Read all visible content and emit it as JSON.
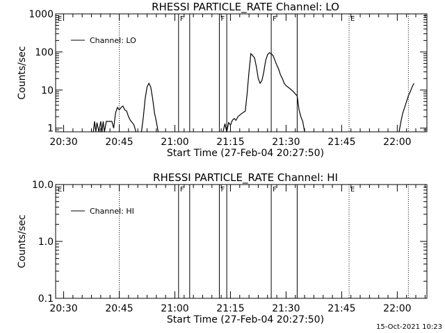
{
  "footer_timestamp": "15-Oct-2021 10:23",
  "chart_data": [
    {
      "type": "line",
      "title": "RHESSI PARTICLE_RATE Channel: LO",
      "xlabel": "Start Time (27-Feb-04 20:27:50)",
      "ylabel": "Counts/sec",
      "yscale": "log",
      "ylim": [
        0.8,
        1000
      ],
      "xlim_minutes": [
        "20:27:50",
        "22:08:00"
      ],
      "y_ticks": [
        "1",
        "10",
        "100",
        "1000"
      ],
      "x_ticks": [
        "20:30",
        "20:45",
        "21:00",
        "21:15",
        "21:30",
        "21:45",
        "22:00"
      ],
      "legend": "Channel: LO",
      "legend_position": "top-left",
      "event_markers": [
        {
          "time": "21:01",
          "label": "F",
          "style": "solid"
        },
        {
          "time": "21:04",
          "label": "",
          "style": "solid"
        },
        {
          "time": "21:12",
          "label": "F",
          "style": "solid"
        },
        {
          "time": "21:14",
          "label": "",
          "style": "solid"
        },
        {
          "time": "21:26",
          "label": "F",
          "style": "solid"
        },
        {
          "time": "21:33",
          "label": "",
          "style": "solid"
        },
        {
          "time": "20:45",
          "label": "",
          "style": "dotted"
        },
        {
          "time": "21:47",
          "label": "E",
          "style": "dotted"
        },
        {
          "time": "22:03",
          "label": "",
          "style": "dotted"
        },
        {
          "time": "20:28",
          "label": "E",
          "style": "none"
        }
      ],
      "series": [
        {
          "name": "Channel: LO",
          "segments": [
            [
              [
                "20:38:00",
                0.8
              ],
              [
                "20:38:20",
                1.5
              ],
              [
                "20:38:40",
                0.8
              ],
              [
                "20:39:00",
                1.4
              ],
              [
                "20:39:30",
                0.8
              ],
              [
                "20:40:00",
                1.5
              ],
              [
                "20:40:20",
                0.8
              ],
              [
                "20:40:40",
                1.5
              ],
              [
                "20:41:00",
                0.8
              ],
              [
                "20:41:30",
                1.5
              ],
              [
                "20:42:00",
                1.5
              ],
              [
                "20:42:30",
                1.5
              ],
              [
                "20:43:00",
                1.5
              ],
              [
                "20:43:30",
                1.0
              ],
              [
                "20:44:00",
                2.5
              ],
              [
                "20:44:30",
                3.5
              ],
              [
                "20:45:00",
                3.0
              ],
              [
                "20:45:30",
                3.5
              ],
              [
                "20:46:00",
                3.8
              ],
              [
                "20:46:30",
                3.0
              ],
              [
                "20:47:00",
                2.8
              ],
              [
                "20:47:30",
                2.0
              ],
              [
                "20:48:00",
                1.6
              ],
              [
                "20:48:30",
                1.4
              ],
              [
                "20:49:00",
                1.2
              ],
              [
                "20:49:30",
                0.8
              ]
            ],
            [
              [
                "20:51:00",
                0.8
              ],
              [
                "20:51:30",
                2.0
              ],
              [
                "20:52:00",
                6.0
              ],
              [
                "20:52:30",
                12.0
              ],
              [
                "20:53:00",
                15.0
              ],
              [
                "20:53:30",
                12.0
              ],
              [
                "20:54:00",
                6.0
              ],
              [
                "20:54:30",
                2.5
              ],
              [
                "20:55:00",
                1.5
              ],
              [
                "20:55:30",
                0.8
              ]
            ],
            [
              [
                "21:13:00",
                0.8
              ],
              [
                "21:13:30",
                1.3
              ],
              [
                "21:14:00",
                0.8
              ],
              [
                "21:14:30",
                1.4
              ],
              [
                "21:15:00",
                1.2
              ],
              [
                "21:15:30",
                1.6
              ],
              [
                "21:16:00",
                1.8
              ],
              [
                "21:16:30",
                1.6
              ],
              [
                "21:17:00",
                2.0
              ],
              [
                "21:17:30",
                2.2
              ],
              [
                "21:18:00",
                2.4
              ],
              [
                "21:18:30",
                2.6
              ],
              [
                "21:19:00",
                2.8
              ],
              [
                "21:19:30",
                8.0
              ],
              [
                "21:20:00",
                30.0
              ],
              [
                "21:20:30",
                90.0
              ],
              [
                "21:21:00",
                80.0
              ],
              [
                "21:21:30",
                70.0
              ],
              [
                "21:22:00",
                40.0
              ],
              [
                "21:22:30",
                20.0
              ],
              [
                "21:23:00",
                15.0
              ],
              [
                "21:23:30",
                18.0
              ],
              [
                "21:24:00",
                30.0
              ],
              [
                "21:24:30",
                60.0
              ],
              [
                "21:25:00",
                85.0
              ],
              [
                "21:25:30",
                95.0
              ],
              [
                "21:26:00",
                90.0
              ],
              [
                "21:26:30",
                80.0
              ],
              [
                "21:27:00",
                60.0
              ],
              [
                "21:27:30",
                45.0
              ],
              [
                "21:28:00",
                35.0
              ],
              [
                "21:28:30",
                25.0
              ],
              [
                "21:29:00",
                20.0
              ],
              [
                "21:29:30",
                15.0
              ],
              [
                "21:30:00",
                13.0
              ],
              [
                "21:31:00",
                11.0
              ],
              [
                "21:32:00",
                9.0
              ],
              [
                "21:33:00",
                7.0
              ],
              [
                "21:33:30",
                3.0
              ],
              [
                "21:34:00",
                2.0
              ],
              [
                "21:34:30",
                1.5
              ],
              [
                "21:35:00",
                0.8
              ]
            ],
            [
              [
                "22:00:30",
                0.8
              ],
              [
                "22:01:00",
                1.5
              ],
              [
                "22:01:30",
                2.5
              ],
              [
                "22:02:00",
                3.5
              ],
              [
                "22:02:30",
                5.0
              ],
              [
                "22:03:00",
                7.0
              ],
              [
                "22:03:30",
                9.0
              ],
              [
                "22:04:00",
                12.0
              ],
              [
                "22:04:30",
                15.0
              ]
            ]
          ]
        }
      ]
    },
    {
      "type": "line",
      "title": "RHESSI PARTICLE_RATE Channel: HI",
      "xlabel": "Start Time (27-Feb-04 20:27:50)",
      "ylabel": "Counts/sec",
      "yscale": "log",
      "ylim": [
        0.1,
        10.0
      ],
      "y_ticks": [
        "0.1",
        "1.0",
        "10.0"
      ],
      "x_ticks": [
        "20:30",
        "20:45",
        "21:00",
        "21:15",
        "21:30",
        "21:45",
        "22:00"
      ],
      "legend": "Channel: HI",
      "legend_position": "top-left",
      "series": [
        {
          "name": "Channel: HI",
          "segments": []
        }
      ]
    }
  ]
}
